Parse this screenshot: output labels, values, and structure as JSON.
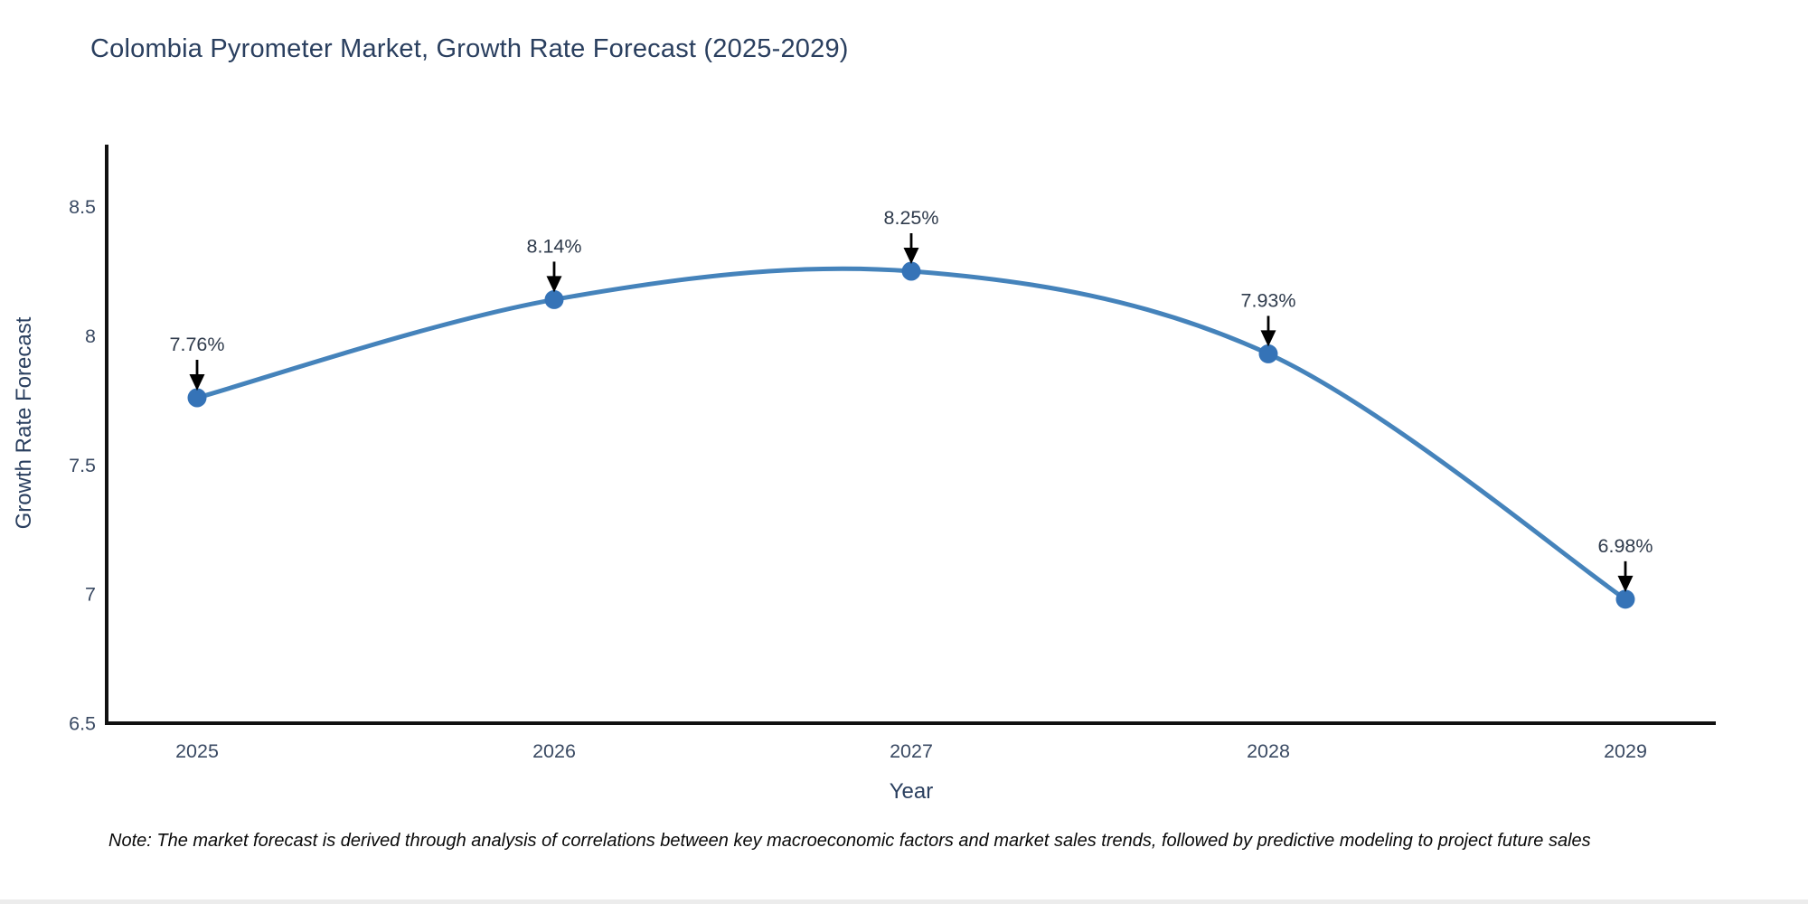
{
  "page": {
    "note": "Note: The market forecast is derived through analysis of correlations between key macroeconomic factors and market sales trends, followed by predictive modeling to project future sales"
  },
  "chart_data": {
    "type": "line",
    "title": "Colombia Pyrometer Market, Growth Rate Forecast (2025-2029)",
    "xlabel": "Year",
    "ylabel": "Growth Rate Forecast",
    "categories": [
      "2025",
      "2026",
      "2027",
      "2028",
      "2029"
    ],
    "series": [
      {
        "name": "Growth Rate Forecast",
        "values": [
          7.76,
          8.14,
          8.25,
          7.93,
          6.98
        ]
      }
    ],
    "point_labels": [
      "7.76%",
      "8.14%",
      "8.25%",
      "7.93%",
      "6.98%"
    ],
    "yticks": [
      6.5,
      7,
      7.5,
      8,
      8.5
    ],
    "ylim": [
      6.5,
      8.74
    ],
    "grid": false,
    "legend": "none",
    "line_shape": "spline",
    "line_color": "#4583bb",
    "marker_color": "#3573b7",
    "axis_color": "#111111",
    "tick_color": "#3a4a63",
    "label_color": "#2f3b4c",
    "arrow_color": "#000000"
  }
}
